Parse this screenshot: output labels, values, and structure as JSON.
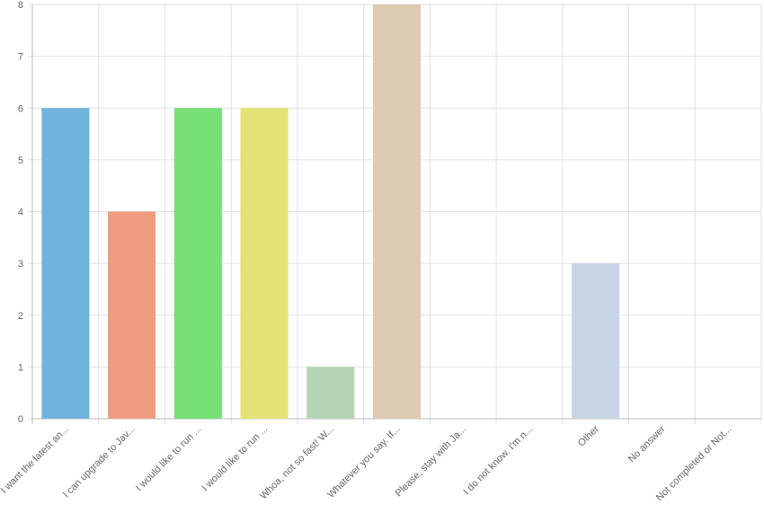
{
  "chart_data": {
    "type": "bar",
    "categories": [
      "I want the latest an...",
      "I can upgrade to Jav...",
      "I would like to run ...",
      "I would like to run ...",
      "Whoa, not so fast! W...",
      "Whatever you say. If...",
      "Please, stay with Ja...",
      "I do not know. I'm n...",
      "Other",
      "No answer",
      "Not completed or Not..."
    ],
    "values": [
      6,
      4,
      6,
      6,
      1,
      8,
      0,
      0,
      3,
      0,
      0
    ],
    "colors": [
      "#6fb3de",
      "#f09c82",
      "#77e077",
      "#e2e276",
      "#b5d3b5",
      "#dfcbb2",
      null,
      null,
      "#c8d5e6",
      null,
      null
    ],
    "ylim": [
      0,
      8
    ],
    "yticks": [
      0,
      1,
      2,
      3,
      4,
      5,
      6,
      7,
      8
    ],
    "grid": true
  }
}
